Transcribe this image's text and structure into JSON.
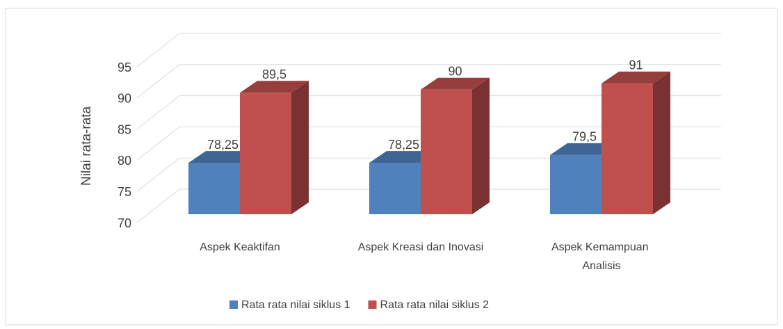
{
  "chart_data": {
    "type": "bar3d",
    "categories": [
      "Aspek Keaktifan",
      "Aspek Kreasi dan Inovasi",
      "Aspek Kemampuan Analisis"
    ],
    "series": [
      {
        "name": "Rata rata nilai siklus 1",
        "color": "#4f81bd",
        "values": [
          78.25,
          78.25,
          79.5
        ],
        "value_labels": [
          "78,25",
          "78,25",
          "79,5"
        ]
      },
      {
        "name": "Rata rata nilai siklus 2",
        "color": "#c0504d",
        "values": [
          89.5,
          90,
          91
        ],
        "value_labels": [
          "89,5",
          "90",
          "91"
        ]
      }
    ],
    "ylabel": "Nilai rata-rata",
    "ylim": [
      70,
      95
    ],
    "yticks": [
      70,
      75,
      80,
      85,
      90,
      95
    ],
    "grid": true,
    "legend": "bottom"
  }
}
